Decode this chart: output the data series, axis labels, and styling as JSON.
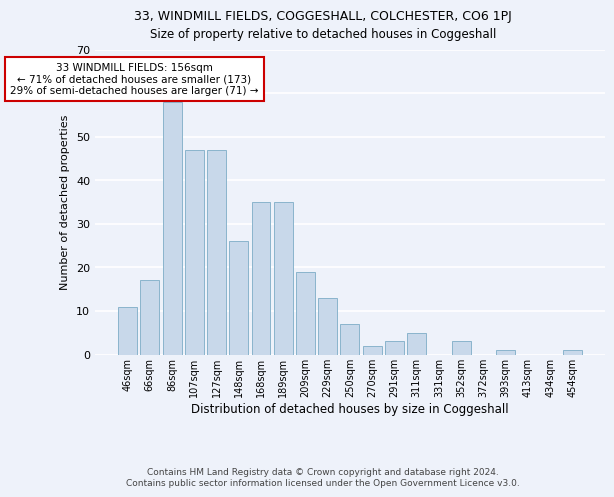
{
  "title1": "33, WINDMILL FIELDS, COGGESHALL, COLCHESTER, CO6 1PJ",
  "title2": "Size of property relative to detached houses in Coggeshall",
  "xlabel": "Distribution of detached houses by size in Coggeshall",
  "ylabel": "Number of detached properties",
  "categories": [
    "46sqm",
    "66sqm",
    "86sqm",
    "107sqm",
    "127sqm",
    "148sqm",
    "168sqm",
    "189sqm",
    "209sqm",
    "229sqm",
    "250sqm",
    "270sqm",
    "291sqm",
    "311sqm",
    "331sqm",
    "352sqm",
    "372sqm",
    "393sqm",
    "413sqm",
    "434sqm",
    "454sqm"
  ],
  "values": [
    11,
    17,
    58,
    47,
    47,
    26,
    35,
    35,
    19,
    13,
    7,
    2,
    3,
    5,
    0,
    3,
    0,
    1,
    0,
    0,
    1
  ],
  "bar_color": "#c8d8ea",
  "bar_edge_color": "#8ab4cc",
  "background_color": "#eef2fa",
  "annotation_text": "33 WINDMILL FIELDS: 156sqm\n← 71% of detached houses are smaller (173)\n29% of semi-detached houses are larger (71) →",
  "annotation_box_color": "#ffffff",
  "annotation_box_edge": "#cc0000",
  "footer1": "Contains HM Land Registry data © Crown copyright and database right 2024.",
  "footer2": "Contains public sector information licensed under the Open Government Licence v3.0.",
  "ylim": [
    0,
    70
  ],
  "yticks": [
    0,
    10,
    20,
    30,
    40,
    50,
    60,
    70
  ],
  "title1_fontsize": 9,
  "title2_fontsize": 8.5,
  "ylabel_fontsize": 8,
  "xlabel_fontsize": 8.5,
  "tick_fontsize": 8,
  "xtick_fontsize": 7,
  "footer_fontsize": 6.5,
  "annot_fontsize": 7.5
}
